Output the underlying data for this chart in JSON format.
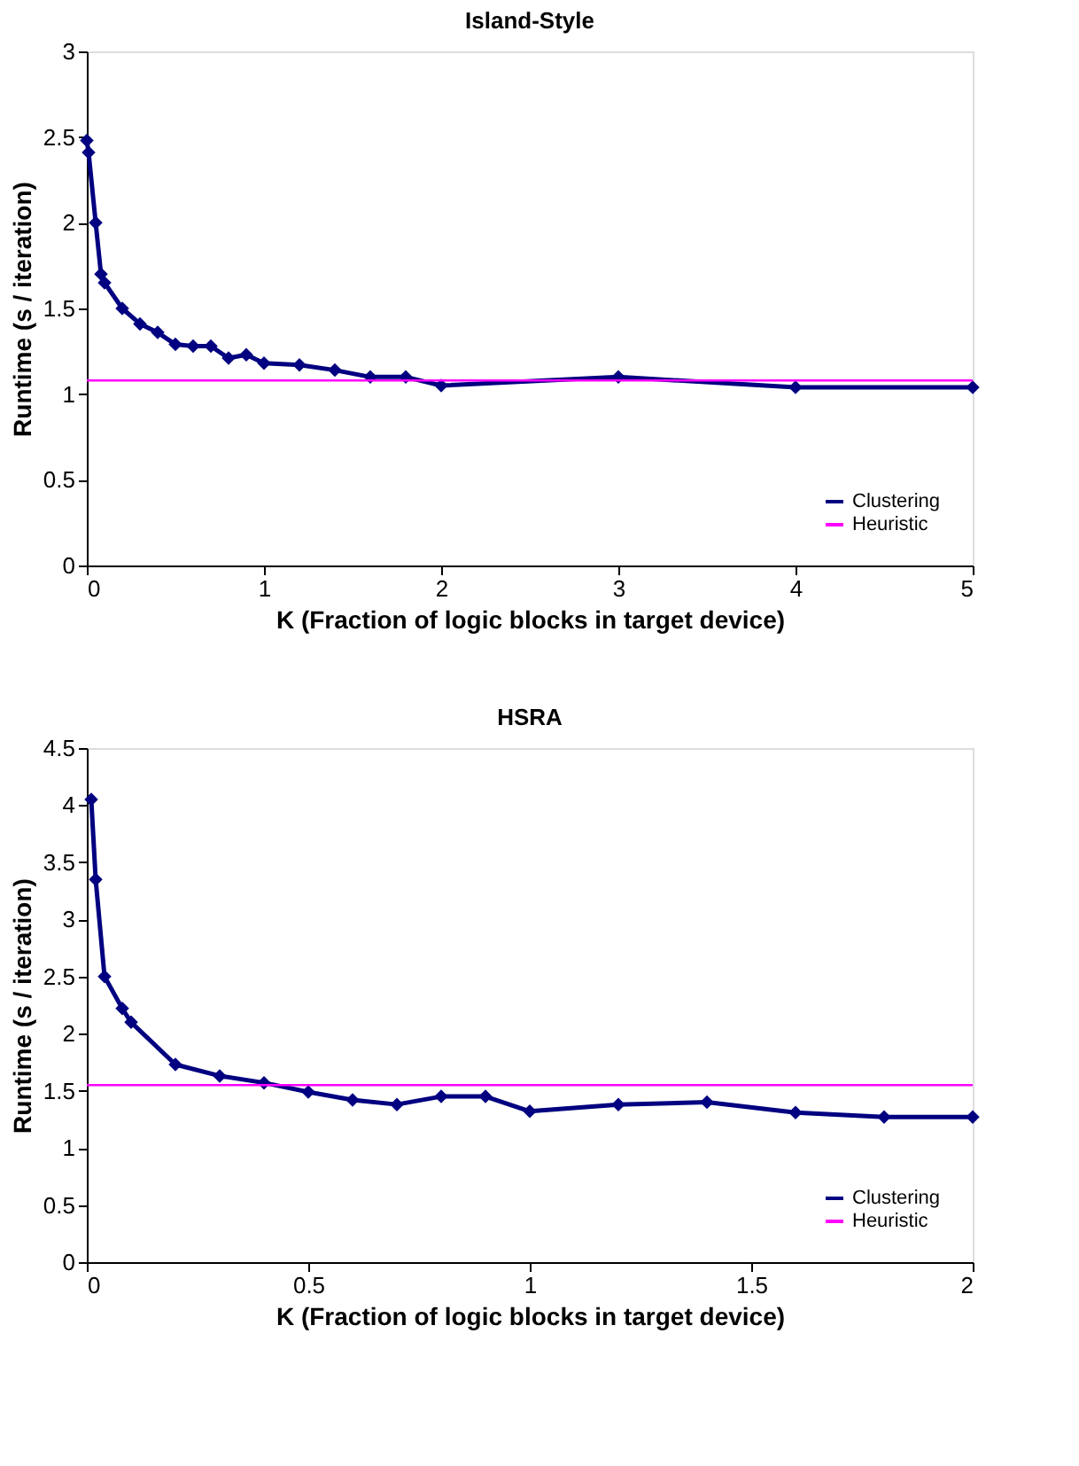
{
  "chart_data": [
    {
      "type": "line",
      "title": "Island-Style",
      "xlabel": "K (Fraction of logic blocks in target device)",
      "ylabel": "Runtime (s / iteration)",
      "x": [
        0,
        0.01,
        0.05,
        0.08,
        0.1,
        0.2,
        0.3,
        0.4,
        0.5,
        0.6,
        0.7,
        0.8,
        0.9,
        1,
        1.2,
        1.4,
        1.6,
        1.8,
        2,
        3,
        4,
        5
      ],
      "series": [
        {
          "name": "Clustering",
          "color": "#000080",
          "values": [
            2.48,
            2.41,
            2.0,
            1.7,
            1.65,
            1.5,
            1.41,
            1.36,
            1.29,
            1.28,
            1.28,
            1.21,
            1.23,
            1.18,
            1.17,
            1.14,
            1.1,
            1.1,
            1.05,
            1.1,
            1.04,
            1.04
          ]
        }
      ],
      "ref_lines": [
        {
          "axis": "y",
          "value": 1.08,
          "label": "Heuristic",
          "color": "#ff00ff"
        }
      ],
      "xlim": [
        0,
        5
      ],
      "xticks": [
        0,
        1,
        2,
        3,
        4,
        5
      ],
      "ylim": [
        0,
        3
      ],
      "yticks": [
        0,
        0.5,
        1,
        1.5,
        2,
        2.5,
        3
      ],
      "grid": false,
      "legend": "bottom right",
      "marker": "diamond",
      "line_style": "solid"
    },
    {
      "type": "line",
      "title": "HSRA",
      "xlabel": "K (Fraction of logic blocks in target device)",
      "ylabel": "Runtime (s / iteration)",
      "x": [
        0.01,
        0.02,
        0.04,
        0.08,
        0.1,
        0.2,
        0.3,
        0.4,
        0.5,
        0.6,
        0.7,
        0.8,
        0.9,
        1,
        1.2,
        1.4,
        1.6,
        1.8,
        2
      ],
      "series": [
        {
          "name": "Clustering",
          "color": "#000080",
          "values": [
            4.05,
            3.35,
            2.5,
            2.22,
            2.1,
            1.73,
            1.63,
            1.57,
            1.49,
            1.42,
            1.38,
            1.45,
            1.45,
            1.32,
            1.38,
            1.4,
            1.31,
            1.27,
            1.27
          ]
        }
      ],
      "ref_lines": [
        {
          "axis": "y",
          "value": 1.55,
          "label": "Heuristic",
          "color": "#ff00ff"
        }
      ],
      "xlim": [
        0,
        2
      ],
      "xticks": [
        0,
        0.5,
        1,
        1.5,
        2
      ],
      "ylim": [
        0,
        4.5
      ],
      "yticks": [
        0,
        0.5,
        1,
        1.5,
        2,
        2.5,
        3,
        3.5,
        4,
        4.5
      ],
      "grid": false,
      "legend": "bottom right",
      "marker": "diamond",
      "line_style": "solid"
    }
  ]
}
